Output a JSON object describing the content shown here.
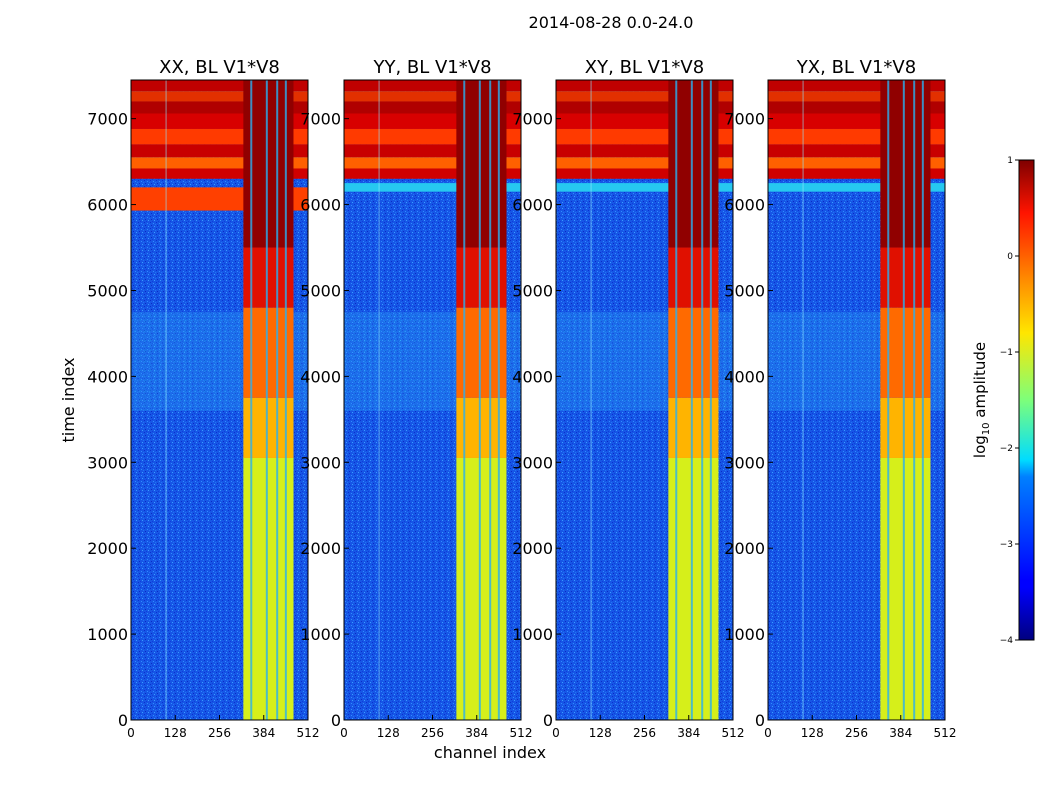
{
  "figure": {
    "suptitle": "2014-08-28 0.0-24.0"
  },
  "chart_data": {
    "type": "heatmap",
    "panels": [
      {
        "title": "XX, BL V1*V8"
      },
      {
        "title": "YY, BL V1*V8"
      },
      {
        "title": "XY, BL V1*V8"
      },
      {
        "title": "YX, BL V1*V8"
      }
    ],
    "xlabel": "channel index",
    "ylabel": "time index",
    "xlim": [
      0,
      512
    ],
    "ylim": [
      0,
      7450
    ],
    "xticks": [
      0,
      128,
      256,
      384,
      512
    ],
    "yticks": [
      0,
      1000,
      2000,
      3000,
      4000,
      5000,
      6000,
      7000
    ],
    "colorbar": {
      "label_prefix": "log",
      "label_sub": "10",
      "label_suffix": " amplitude",
      "range": [
        -4,
        1
      ],
      "ticks": [
        1,
        0,
        -1,
        -2,
        -3,
        -4
      ],
      "tick_labels": [
        "1",
        "0",
        "−1",
        "−2",
        "−3",
        "−4"
      ],
      "colormap": "jet"
    }
  }
}
